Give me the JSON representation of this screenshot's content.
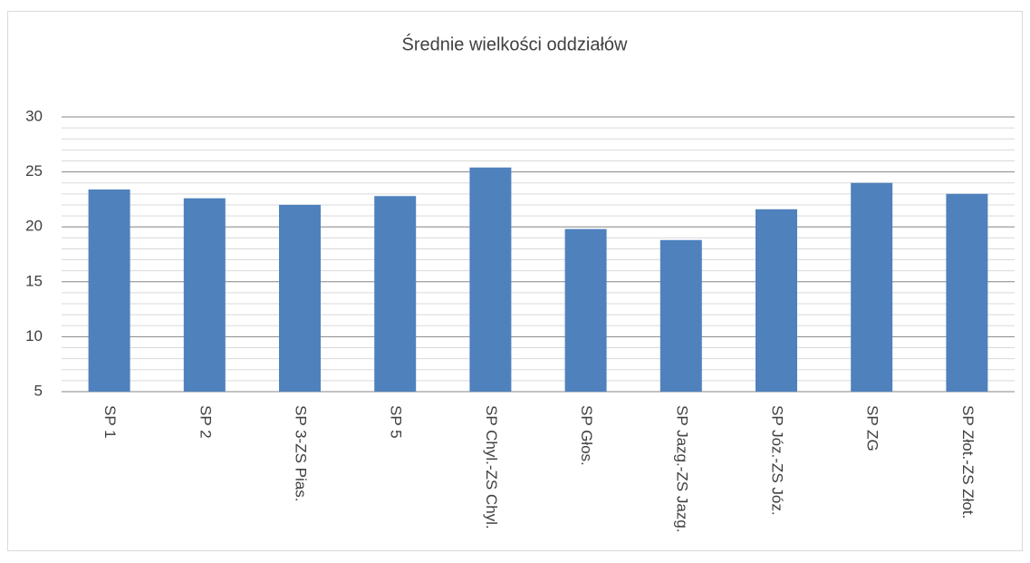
{
  "chart_data": {
    "type": "bar",
    "title": "Średnie wielkości oddziałów",
    "categories": [
      "SP 1",
      "SP 2",
      "SP 3-ZS Pias.",
      "SP 5",
      "SP Chyl.-ZS Chyl.",
      "SP Głos.",
      "SP Jazg.-ZS Jazg.",
      "SP Józ.-ZS Józ.",
      "SP ZG",
      "SP Złot.-ZS Złot."
    ],
    "values": [
      23.4,
      22.6,
      22.0,
      22.8,
      25.4,
      19.8,
      18.8,
      21.6,
      24.0,
      23.0
    ],
    "color": "#4f81bd",
    "ylim": [
      5,
      30
    ],
    "yticks": [
      5,
      10,
      15,
      20,
      25,
      30
    ],
    "minor_yticks": [
      6,
      7,
      8,
      9,
      11,
      12,
      13,
      14,
      16,
      17,
      18,
      19,
      21,
      22,
      23,
      24,
      26,
      27,
      28,
      29
    ],
    "grid": true
  }
}
